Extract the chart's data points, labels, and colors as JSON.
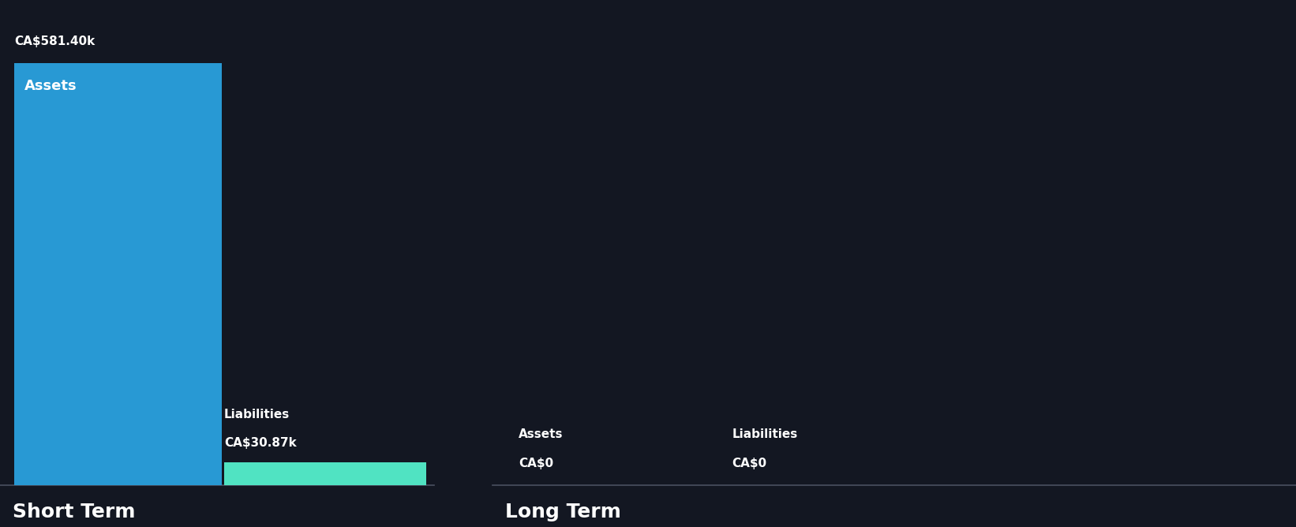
{
  "background_color": "#131722",
  "text_color": "#ffffff",
  "short_term": {
    "assets_value": 581400,
    "assets_label": "Assets",
    "assets_value_label": "CA$581.40k",
    "assets_color": "#2899d4",
    "liabilities_value": 30870,
    "liabilities_label": "Liabilities",
    "liabilities_value_label": "CA$30.87k",
    "liabilities_color": "#50e3c2",
    "section_label": "Short Term"
  },
  "long_term": {
    "assets_value": 0,
    "assets_label": "Assets",
    "assets_value_label": "CA$0",
    "liabilities_value": 0,
    "liabilities_label": "Liabilities",
    "liabilities_value_label": "CA$0",
    "section_label": "Long Term"
  },
  "divider_color": "#4a5060",
  "label_fontsize": 11,
  "value_fontsize": 11,
  "section_fontsize": 18,
  "bar_label_fontsize": 13
}
